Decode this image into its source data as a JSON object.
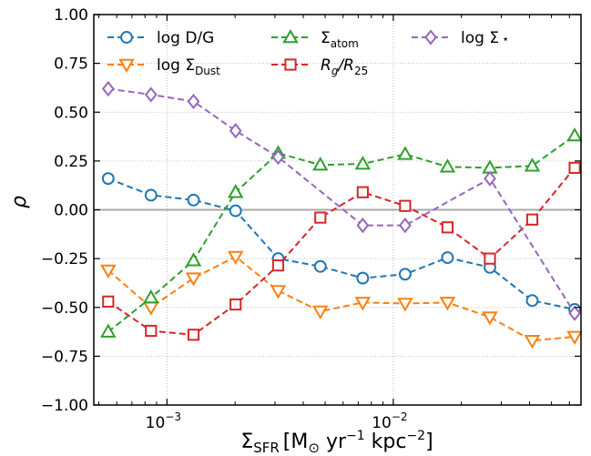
{
  "chart_data": {
    "type": "line",
    "xscale": "log",
    "xlabel": {
      "main": "Σ",
      "sub": "SFR",
      "rest": "[M",
      "odot": "⊙",
      "yr": " yr",
      "yr_exp": "−1",
      "kpc": " kpc",
      "kpc_exp": "−2",
      "close": "]"
    },
    "ylabel": "ρ",
    "xlim": [
      0.000475,
      0.0675
    ],
    "ylim": [
      -1.0,
      1.0
    ],
    "yticks": [
      -1.0,
      -0.75,
      -0.5,
      -0.25,
      0.0,
      0.25,
      0.5,
      0.75,
      1.0
    ],
    "ytick_labels": [
      "−1.00",
      "−0.75",
      "−0.50",
      "−0.25",
      "0.00",
      "0.25",
      "0.50",
      "0.75",
      "1.00"
    ],
    "xticks_major": [
      {
        "value": 0.001,
        "base": "10",
        "exp": "−3"
      },
      {
        "value": 0.01,
        "base": "10",
        "exp": "−2"
      }
    ],
    "xticks_minor": [
      0.0005,
      0.0006,
      0.0007,
      0.0008,
      0.0009,
      0.002,
      0.003,
      0.004,
      0.005,
      0.006,
      0.007,
      0.008,
      0.009,
      0.02,
      0.03,
      0.04,
      0.05,
      0.06
    ],
    "grid": true,
    "zero_line": 0.0,
    "legend_position": "top",
    "x": [
      0.00055,
      0.00085,
      0.00131,
      0.00201,
      0.0031,
      0.00476,
      0.00733,
      0.01128,
      0.01736,
      0.02672,
      0.04112,
      0.0633
    ],
    "series": [
      {
        "key": "logDG",
        "color": "#1f77b4",
        "marker": "circle",
        "legend": {
          "text": "log D/G"
        },
        "values": [
          0.16,
          0.075,
          0.05,
          -0.005,
          -0.25,
          -0.29,
          -0.35,
          -0.33,
          -0.245,
          -0.295,
          -0.465,
          -0.51
        ]
      },
      {
        "key": "logSigmaDust",
        "color": "#ff7f0e",
        "marker": "triangle-down",
        "legend": {
          "text": "log Σ",
          "sub": "Dust"
        },
        "values": [
          -0.31,
          -0.5,
          -0.35,
          -0.24,
          -0.415,
          -0.52,
          -0.475,
          -0.48,
          -0.475,
          -0.55,
          -0.67,
          -0.65
        ]
      },
      {
        "key": "SigmaAtom",
        "color": "#2ca02c",
        "marker": "triangle-up",
        "legend": {
          "text": "Σ",
          "sub": "atom"
        },
        "values": [
          -0.625,
          -0.45,
          -0.26,
          0.09,
          0.29,
          0.23,
          0.235,
          0.285,
          0.22,
          0.215,
          0.225,
          0.38
        ]
      },
      {
        "key": "RgR25",
        "color": "#d62728",
        "marker": "square",
        "legend": {
          "text": "R",
          "sub": "g",
          "text2": "/R",
          "sub2": "25"
        },
        "values": [
          -0.47,
          -0.62,
          -0.64,
          -0.485,
          -0.285,
          -0.04,
          0.09,
          0.02,
          -0.09,
          -0.25,
          -0.05,
          0.215
        ]
      },
      {
        "key": "logSigmaStar",
        "color": "#9467bd",
        "marker": "diamond",
        "legend": {
          "text": "log Σ",
          "sup": "⋆"
        },
        "values": [
          0.62,
          0.59,
          0.555,
          0.405,
          0.27,
          null,
          -0.08,
          -0.08,
          null,
          0.16,
          null,
          -0.53
        ]
      }
    ]
  }
}
